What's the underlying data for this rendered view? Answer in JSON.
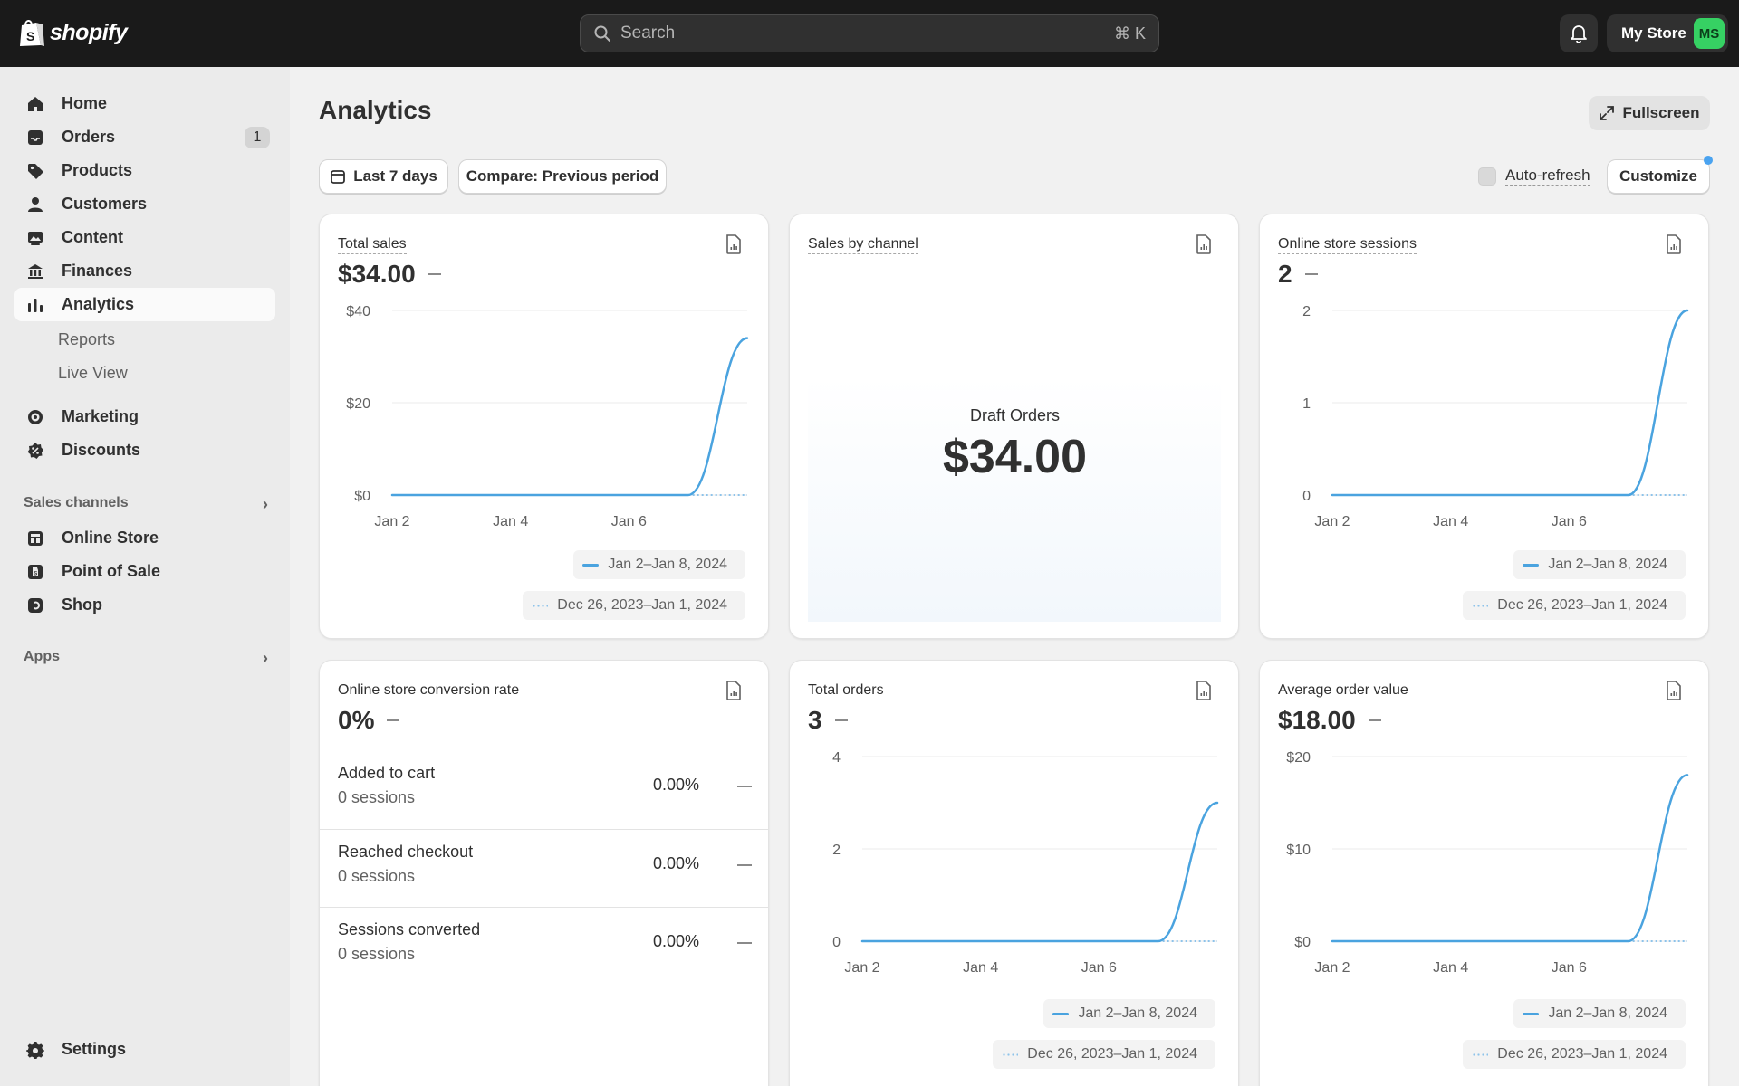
{
  "topbar": {
    "logo_text": "shopify",
    "search_placeholder": "Search",
    "search_shortcut": "⌘ K",
    "store_name": "My Store",
    "avatar_initials": "MS"
  },
  "sidebar": {
    "items": [
      {
        "label": "Home",
        "icon": "home-icon"
      },
      {
        "label": "Orders",
        "icon": "inbox-icon",
        "badge": "1"
      },
      {
        "label": "Products",
        "icon": "tag-icon"
      },
      {
        "label": "Customers",
        "icon": "person-icon"
      },
      {
        "label": "Content",
        "icon": "image-icon"
      },
      {
        "label": "Finances",
        "icon": "bank-icon"
      },
      {
        "label": "Analytics",
        "icon": "bar-chart-icon",
        "active": true
      }
    ],
    "sub_items": [
      "Reports",
      "Live View"
    ],
    "items2": [
      {
        "label": "Marketing",
        "icon": "target-icon"
      },
      {
        "label": "Discounts",
        "icon": "discount-icon"
      }
    ],
    "sales_channels_heading": "Sales channels",
    "channels": [
      {
        "label": "Online Store",
        "icon": "store-icon"
      },
      {
        "label": "Point of Sale",
        "icon": "pos-icon"
      },
      {
        "label": "Shop",
        "icon": "shop-icon"
      }
    ],
    "apps_heading": "Apps",
    "settings_label": "Settings"
  },
  "main": {
    "title": "Analytics",
    "fullscreen_label": "Fullscreen",
    "date_range_label": "Last 7 days",
    "compare_label": "Compare: Previous period",
    "auto_refresh_label": "Auto-refresh",
    "customize_label": "Customize"
  },
  "legend": {
    "current": "Jan 2–Jan 8, 2024",
    "previous": "Dec 26, 2023–Jan 1, 2024"
  },
  "cards": {
    "total_sales": {
      "title": "Total sales",
      "value": "$34.00"
    },
    "sales_by_channel": {
      "title": "Sales by channel",
      "label": "Draft Orders",
      "value": "$34.00"
    },
    "sessions": {
      "title": "Online store sessions",
      "value": "2"
    },
    "conversion": {
      "title": "Online store conversion rate",
      "value": "0%",
      "rows": [
        {
          "label": "Added to cart",
          "sub": "0 sessions",
          "pct": "0.00%"
        },
        {
          "label": "Reached checkout",
          "sub": "0 sessions",
          "pct": "0.00%"
        },
        {
          "label": "Sessions converted",
          "sub": "0 sessions",
          "pct": "0.00%"
        }
      ]
    },
    "total_orders": {
      "title": "Total orders",
      "value": "3"
    },
    "aov": {
      "title": "Average order value",
      "value": "$18.00"
    }
  },
  "chart_data": [
    {
      "type": "line",
      "title": "Total sales",
      "x": [
        "Jan 2",
        "Jan 3",
        "Jan 4",
        "Jan 5",
        "Jan 6",
        "Jan 7",
        "Jan 8"
      ],
      "x_tick_labels": [
        "Jan 2",
        "Jan 4",
        "Jan 6"
      ],
      "y_tick_labels": [
        "$0",
        "$20",
        "$40"
      ],
      "ylim": [
        0,
        40
      ],
      "series": [
        {
          "name": "Jan 2–Jan 8, 2024",
          "values": [
            0,
            0,
            0,
            0,
            0,
            0,
            34
          ]
        },
        {
          "name": "Dec 26, 2023–Jan 1, 2024",
          "values": [
            0,
            0,
            0,
            0,
            0,
            0,
            0
          ]
        }
      ],
      "grid": true,
      "legend": "bottom-right"
    },
    {
      "type": "line",
      "title": "Online store sessions",
      "x": [
        "Jan 2",
        "Jan 3",
        "Jan 4",
        "Jan 5",
        "Jan 6",
        "Jan 7",
        "Jan 8"
      ],
      "x_tick_labels": [
        "Jan 2",
        "Jan 4",
        "Jan 6"
      ],
      "y_tick_labels": [
        "0",
        "1",
        "2"
      ],
      "ylim": [
        0,
        2
      ],
      "series": [
        {
          "name": "Jan 2–Jan 8, 2024",
          "values": [
            0,
            0,
            0,
            0,
            0,
            0,
            2
          ]
        },
        {
          "name": "Dec 26, 2023–Jan 1, 2024",
          "values": [
            0,
            0,
            0,
            0,
            0,
            0,
            0
          ]
        }
      ],
      "grid": true,
      "legend": "bottom-right"
    },
    {
      "type": "line",
      "title": "Total orders",
      "x": [
        "Jan 2",
        "Jan 3",
        "Jan 4",
        "Jan 5",
        "Jan 6",
        "Jan 7",
        "Jan 8"
      ],
      "x_tick_labels": [
        "Jan 2",
        "Jan 4",
        "Jan 6"
      ],
      "y_tick_labels": [
        "0",
        "2",
        "4"
      ],
      "ylim": [
        0,
        4
      ],
      "series": [
        {
          "name": "Jan 2–Jan 8, 2024",
          "values": [
            0,
            0,
            0,
            0,
            0,
            0,
            3
          ]
        },
        {
          "name": "Dec 26, 2023–Jan 1, 2024",
          "values": [
            0,
            0,
            0,
            0,
            0,
            0,
            0
          ]
        }
      ],
      "grid": true,
      "legend": "bottom-right"
    },
    {
      "type": "line",
      "title": "Average order value",
      "x": [
        "Jan 2",
        "Jan 3",
        "Jan 4",
        "Jan 5",
        "Jan 6",
        "Jan 7",
        "Jan 8"
      ],
      "x_tick_labels": [
        "Jan 2",
        "Jan 4",
        "Jan 6"
      ],
      "y_tick_labels": [
        "$0",
        "$10",
        "$20"
      ],
      "ylim": [
        0,
        20
      ],
      "series": [
        {
          "name": "Jan 2–Jan 8, 2024",
          "values": [
            0,
            0,
            0,
            0,
            0,
            0,
            18
          ]
        },
        {
          "name": "Dec 26, 2023–Jan 1, 2024",
          "values": [
            0,
            0,
            0,
            0,
            0,
            0,
            0
          ]
        }
      ],
      "grid": true,
      "legend": "bottom-right"
    }
  ],
  "colors": {
    "series_current": "#4aa3df",
    "series_previous": "#8ec3ea",
    "topbar": "#1a1a1a",
    "avatar": "#36d163"
  }
}
